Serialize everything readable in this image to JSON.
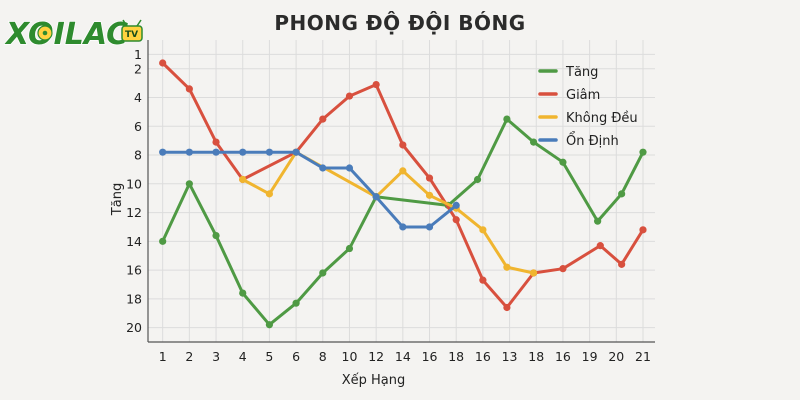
{
  "brand": {
    "logo_text": "XOILAC",
    "logo_badge": "TV"
  },
  "colors": {
    "green": "#4f9a44",
    "red": "#d8503e",
    "yellow": "#f0b52f",
    "blue": "#4a7cba",
    "logo": "#2e8b2e",
    "grid": "#dcdcdc",
    "axis": "#555555"
  },
  "chart_data": {
    "type": "line",
    "title": "PHONG ĐỘ ĐỘI BÓNG",
    "xlabel": "Xếp Hạng",
    "ylabel": "Tăng",
    "x_tick_labels": [
      "1",
      "2",
      "3",
      "4",
      "5",
      "6",
      "8",
      "10",
      "12",
      "14",
      "16",
      "18",
      "16",
      "13",
      "18",
      "16",
      "19",
      "20",
      "21"
    ],
    "x_tick_positions": [
      1,
      2,
      3,
      4,
      5,
      6,
      7,
      8,
      9,
      10,
      11,
      12,
      13,
      14,
      15,
      16,
      17,
      18,
      19
    ],
    "y_ticks": [
      1,
      2,
      4,
      6,
      8,
      10,
      12,
      14,
      16,
      18,
      20
    ],
    "y_inverted": true,
    "grid": true,
    "legend_position": "top-right",
    "series": [
      {
        "name": "Tăng",
        "color": "#4f9a44",
        "points": [
          [
            1,
            14.0
          ],
          [
            2,
            10.0
          ],
          [
            3,
            13.6
          ],
          [
            4,
            17.6
          ],
          [
            5,
            19.8
          ],
          [
            6,
            18.3
          ],
          [
            7,
            16.2
          ],
          [
            8,
            14.5
          ],
          [
            9,
            10.9
          ],
          [
            11.7,
            11.5
          ],
          [
            12.8,
            9.7
          ],
          [
            13.9,
            5.5
          ],
          [
            14.9,
            7.1
          ],
          [
            16,
            8.5
          ],
          [
            17.3,
            12.6
          ],
          [
            18.2,
            10.7
          ],
          [
            19,
            7.8
          ]
        ]
      },
      {
        "name": "Giâm",
        "color": "#d8503e",
        "points": [
          [
            1,
            1.6
          ],
          [
            2,
            3.4
          ],
          [
            3,
            7.1
          ],
          [
            4,
            9.7
          ],
          [
            6,
            7.8
          ],
          [
            7,
            5.5
          ],
          [
            8,
            3.9
          ],
          [
            9,
            3.1
          ],
          [
            10,
            7.3
          ],
          [
            11,
            9.6
          ],
          [
            12,
            12.5
          ],
          [
            13,
            16.7
          ],
          [
            13.9,
            18.6
          ],
          [
            14.9,
            16.2
          ],
          [
            16,
            15.9
          ],
          [
            17.4,
            14.3
          ],
          [
            18.2,
            15.6
          ],
          [
            19,
            13.2
          ]
        ]
      },
      {
        "name": "Không Đều",
        "color": "#f0b52f",
        "points": [
          [
            4,
            9.7
          ],
          [
            5,
            10.7
          ],
          [
            6,
            7.8
          ],
          [
            9,
            10.9
          ],
          [
            10,
            9.1
          ],
          [
            11,
            10.8
          ],
          [
            12,
            11.7
          ],
          [
            13,
            13.2
          ],
          [
            13.9,
            15.8
          ],
          [
            14.9,
            16.2
          ]
        ]
      },
      {
        "name": "Ổn Định",
        "color": "#4a7cba",
        "points": [
          [
            1,
            7.8
          ],
          [
            2,
            7.8
          ],
          [
            3,
            7.8
          ],
          [
            4,
            7.8
          ],
          [
            5,
            7.8
          ],
          [
            6,
            7.8
          ],
          [
            7,
            8.9
          ],
          [
            8,
            8.9
          ],
          [
            9,
            10.9
          ],
          [
            10,
            13.0
          ],
          [
            11,
            13.0
          ],
          [
            12,
            11.5
          ]
        ]
      }
    ]
  }
}
